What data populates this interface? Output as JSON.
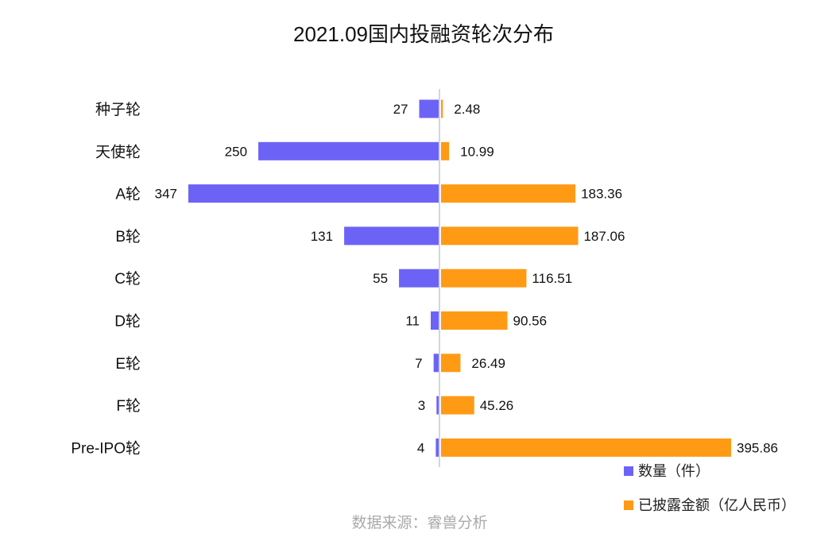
{
  "chart_data": {
    "type": "bar",
    "orientation": "horizontal-diverging",
    "title": "2021.09国内投融资轮次分布",
    "categories": [
      "种子轮",
      "天使轮",
      "A轮",
      "B轮",
      "C轮",
      "D轮",
      "E轮",
      "F轮",
      "Pre-IPO轮"
    ],
    "series": [
      {
        "name": "数量（件）",
        "color": "#6c63f6",
        "direction": "left",
        "values": [
          27,
          250,
          347,
          131,
          55,
          11,
          7,
          3,
          4
        ],
        "labels": [
          "27",
          "250",
          "347",
          "131",
          "55",
          "11",
          "7",
          "3",
          "4"
        ]
      },
      {
        "name": "已披露金额（亿人民币）",
        "color": "#ff9a14",
        "direction": "right",
        "values": [
          2.48,
          10.99,
          183.36,
          187.06,
          116.51,
          90.56,
          26.49,
          45.26,
          395.86
        ],
        "labels": [
          "2.48",
          "10.99",
          "183.36",
          "187.06",
          "116.51",
          "90.56",
          "26.49",
          "45.26",
          "395.86"
        ]
      }
    ],
    "legend_position": "bottom-right",
    "grid": false,
    "source": "数据来源：睿兽分析"
  }
}
